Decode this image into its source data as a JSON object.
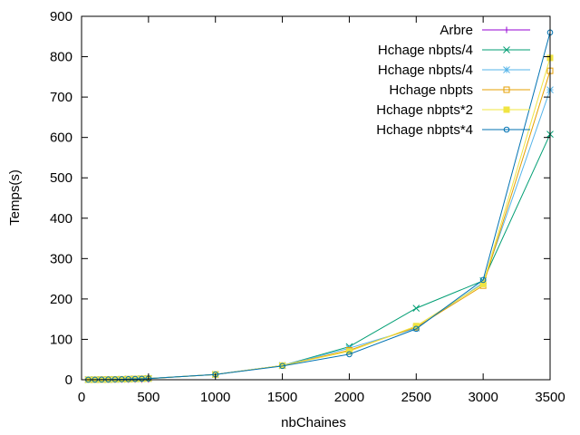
{
  "chart_data": {
    "type": "line",
    "title": "",
    "xlabel": "nbChaines",
    "ylabel": "Temps(s)",
    "xlim": [
      0,
      3500
    ],
    "ylim": [
      0,
      900
    ],
    "xticks": [
      0,
      500,
      1000,
      1500,
      2000,
      2500,
      3000,
      3500
    ],
    "yticks": [
      0,
      100,
      200,
      300,
      400,
      500,
      600,
      700,
      800,
      900
    ],
    "grid": false,
    "legend_position": "top-right",
    "series": [
      {
        "name": "Arbre",
        "color": "#9400d3",
        "marker": "plus",
        "x": [
          50,
          100,
          150,
          200,
          250,
          300,
          350,
          400,
          450,
          500
        ],
        "y": [
          0.1,
          0.2,
          0.2,
          0.3,
          0.3,
          0.4,
          0.4,
          0.5,
          0.5,
          0.6
        ]
      },
      {
        "name": "Hchage nbpts/4",
        "color": "#009e73",
        "marker": "cross",
        "x": [
          50,
          100,
          150,
          200,
          250,
          300,
          350,
          400,
          450,
          500,
          1000,
          1500,
          2000,
          2500,
          3000,
          3500
        ],
        "y": [
          0.1,
          0.2,
          0.4,
          0.6,
          0.9,
          1.2,
          1.6,
          2.1,
          2.6,
          3.2,
          13,
          35,
          82,
          177,
          245,
          608
        ]
      },
      {
        "name": "Hchage nbpts/4",
        "color": "#56b4e9",
        "marker": "star",
        "x": [
          50,
          100,
          150,
          200,
          250,
          300,
          350,
          400,
          450,
          500,
          1000,
          1500,
          2000,
          2500,
          3000,
          3500
        ],
        "y": [
          0.1,
          0.2,
          0.4,
          0.6,
          0.9,
          1.2,
          1.6,
          2.0,
          2.5,
          3.1,
          13,
          35,
          78,
          128,
          240,
          718
        ]
      },
      {
        "name": "Hchage nbpts",
        "color": "#e69f00",
        "marker": "square-open",
        "x": [
          50,
          100,
          150,
          200,
          250,
          300,
          350,
          400,
          450,
          500,
          1000,
          1500,
          2000,
          2500,
          3000,
          3500
        ],
        "y": [
          0.1,
          0.2,
          0.4,
          0.6,
          0.9,
          1.2,
          1.5,
          2.0,
          2.5,
          3.0,
          13,
          35,
          73,
          130,
          233,
          765
        ]
      },
      {
        "name": "Hchage nbpts*2",
        "color": "#f0e442",
        "marker": "square-filled",
        "x": [
          50,
          100,
          150,
          200,
          250,
          300,
          350,
          400,
          450,
          500,
          1000,
          1500,
          2000,
          2500,
          3000,
          3500
        ],
        "y": [
          0.1,
          0.2,
          0.4,
          0.6,
          0.9,
          1.2,
          1.5,
          2.0,
          2.5,
          3.0,
          13,
          35,
          70,
          133,
          237,
          797
        ]
      },
      {
        "name": "Hchage nbpts*4",
        "color": "#0072b2",
        "marker": "circle-open",
        "x": [
          50,
          100,
          150,
          200,
          250,
          300,
          350,
          400,
          450,
          500,
          1000,
          1500,
          2000,
          2500,
          3000,
          3500
        ],
        "y": [
          0.1,
          0.2,
          0.4,
          0.6,
          0.9,
          1.2,
          1.5,
          2.0,
          2.5,
          3.0,
          13,
          34,
          63,
          126,
          247,
          860
        ]
      }
    ]
  }
}
